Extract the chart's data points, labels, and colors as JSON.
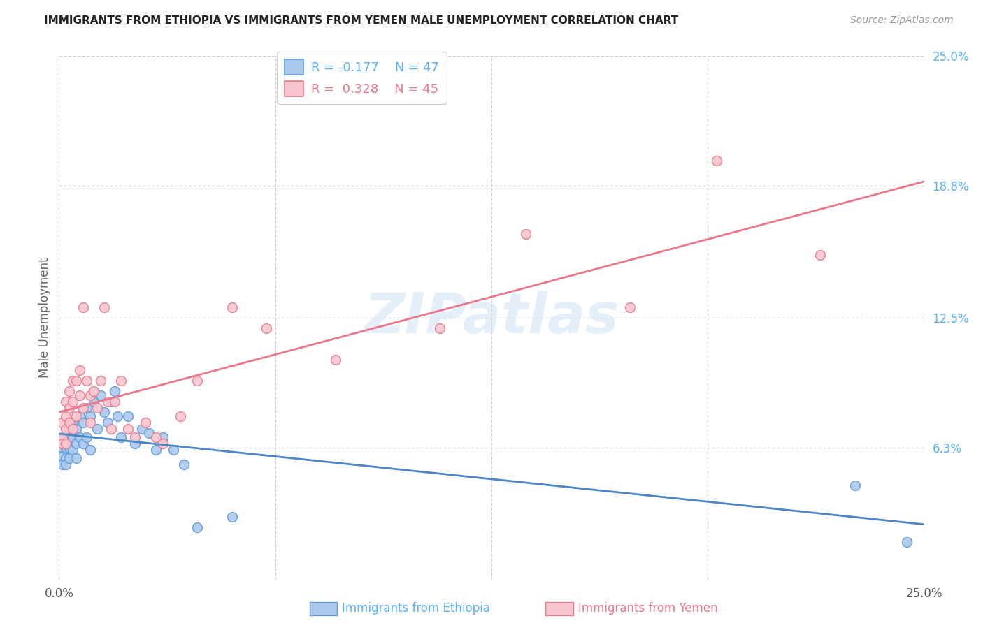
{
  "title": "IMMIGRANTS FROM ETHIOPIA VS IMMIGRANTS FROM YEMEN MALE UNEMPLOYMENT CORRELATION CHART",
  "source": "Source: ZipAtlas.com",
  "ylabel": "Male Unemployment",
  "xlim": [
    0,
    0.25
  ],
  "ylim": [
    0,
    0.25
  ],
  "xtick_positions": [
    0.0,
    0.25
  ],
  "xtick_labels": [
    "0.0%",
    "25.0%"
  ],
  "ytick_values": [
    0.063,
    0.125,
    0.188,
    0.25
  ],
  "ytick_labels": [
    "6.3%",
    "12.5%",
    "18.8%",
    "25.0%"
  ],
  "watermark": "ZIPatlas",
  "legend_ethiopia": "Immigrants from Ethiopia",
  "legend_yemen": "Immigrants from Yemen",
  "ethiopia_R": -0.177,
  "ethiopia_N": 47,
  "yemen_R": 0.328,
  "yemen_N": 45,
  "color_ethiopia_fill": "#adc9ee",
  "color_ethiopia_edge": "#5a9ad6",
  "color_yemen_fill": "#f9c6d0",
  "color_yemen_edge": "#e8788a",
  "color_ethiopia_line": "#4a86c8",
  "color_yemen_line": "#e8788a",
  "color_right_labels": "#5ab0ff",
  "color_title": "#222222",
  "background": "#ffffff",
  "ethiopia_x": [
    0.001,
    0.001,
    0.001,
    0.001,
    0.002,
    0.002,
    0.002,
    0.002,
    0.003,
    0.003,
    0.003,
    0.003,
    0.004,
    0.004,
    0.004,
    0.005,
    0.005,
    0.005,
    0.006,
    0.006,
    0.007,
    0.007,
    0.008,
    0.008,
    0.009,
    0.009,
    0.01,
    0.011,
    0.012,
    0.013,
    0.014,
    0.015,
    0.016,
    0.017,
    0.018,
    0.02,
    0.022,
    0.024,
    0.026,
    0.028,
    0.03,
    0.033,
    0.036,
    0.04,
    0.05,
    0.23,
    0.245
  ],
  "ethiopia_y": [
    0.067,
    0.063,
    0.059,
    0.055,
    0.065,
    0.063,
    0.058,
    0.055,
    0.072,
    0.068,
    0.063,
    0.058,
    0.075,
    0.068,
    0.062,
    0.072,
    0.065,
    0.058,
    0.078,
    0.068,
    0.075,
    0.065,
    0.082,
    0.068,
    0.078,
    0.062,
    0.085,
    0.072,
    0.088,
    0.08,
    0.075,
    0.085,
    0.09,
    0.078,
    0.068,
    0.078,
    0.065,
    0.072,
    0.07,
    0.062,
    0.068,
    0.062,
    0.055,
    0.025,
    0.03,
    0.045,
    0.018
  ],
  "yemen_x": [
    0.001,
    0.001,
    0.001,
    0.002,
    0.002,
    0.002,
    0.002,
    0.003,
    0.003,
    0.003,
    0.004,
    0.004,
    0.004,
    0.005,
    0.005,
    0.006,
    0.006,
    0.007,
    0.007,
    0.008,
    0.009,
    0.009,
    0.01,
    0.011,
    0.012,
    0.013,
    0.014,
    0.015,
    0.016,
    0.018,
    0.02,
    0.022,
    0.025,
    0.028,
    0.03,
    0.035,
    0.04,
    0.05,
    0.06,
    0.08,
    0.11,
    0.135,
    0.165,
    0.19,
    0.22
  ],
  "yemen_y": [
    0.075,
    0.068,
    0.065,
    0.085,
    0.078,
    0.072,
    0.065,
    0.09,
    0.082,
    0.075,
    0.095,
    0.085,
    0.072,
    0.095,
    0.078,
    0.1,
    0.088,
    0.13,
    0.082,
    0.095,
    0.088,
    0.075,
    0.09,
    0.082,
    0.095,
    0.13,
    0.085,
    0.072,
    0.085,
    0.095,
    0.072,
    0.068,
    0.075,
    0.068,
    0.065,
    0.078,
    0.095,
    0.13,
    0.12,
    0.105,
    0.12,
    0.165,
    0.13,
    0.2,
    0.155
  ]
}
